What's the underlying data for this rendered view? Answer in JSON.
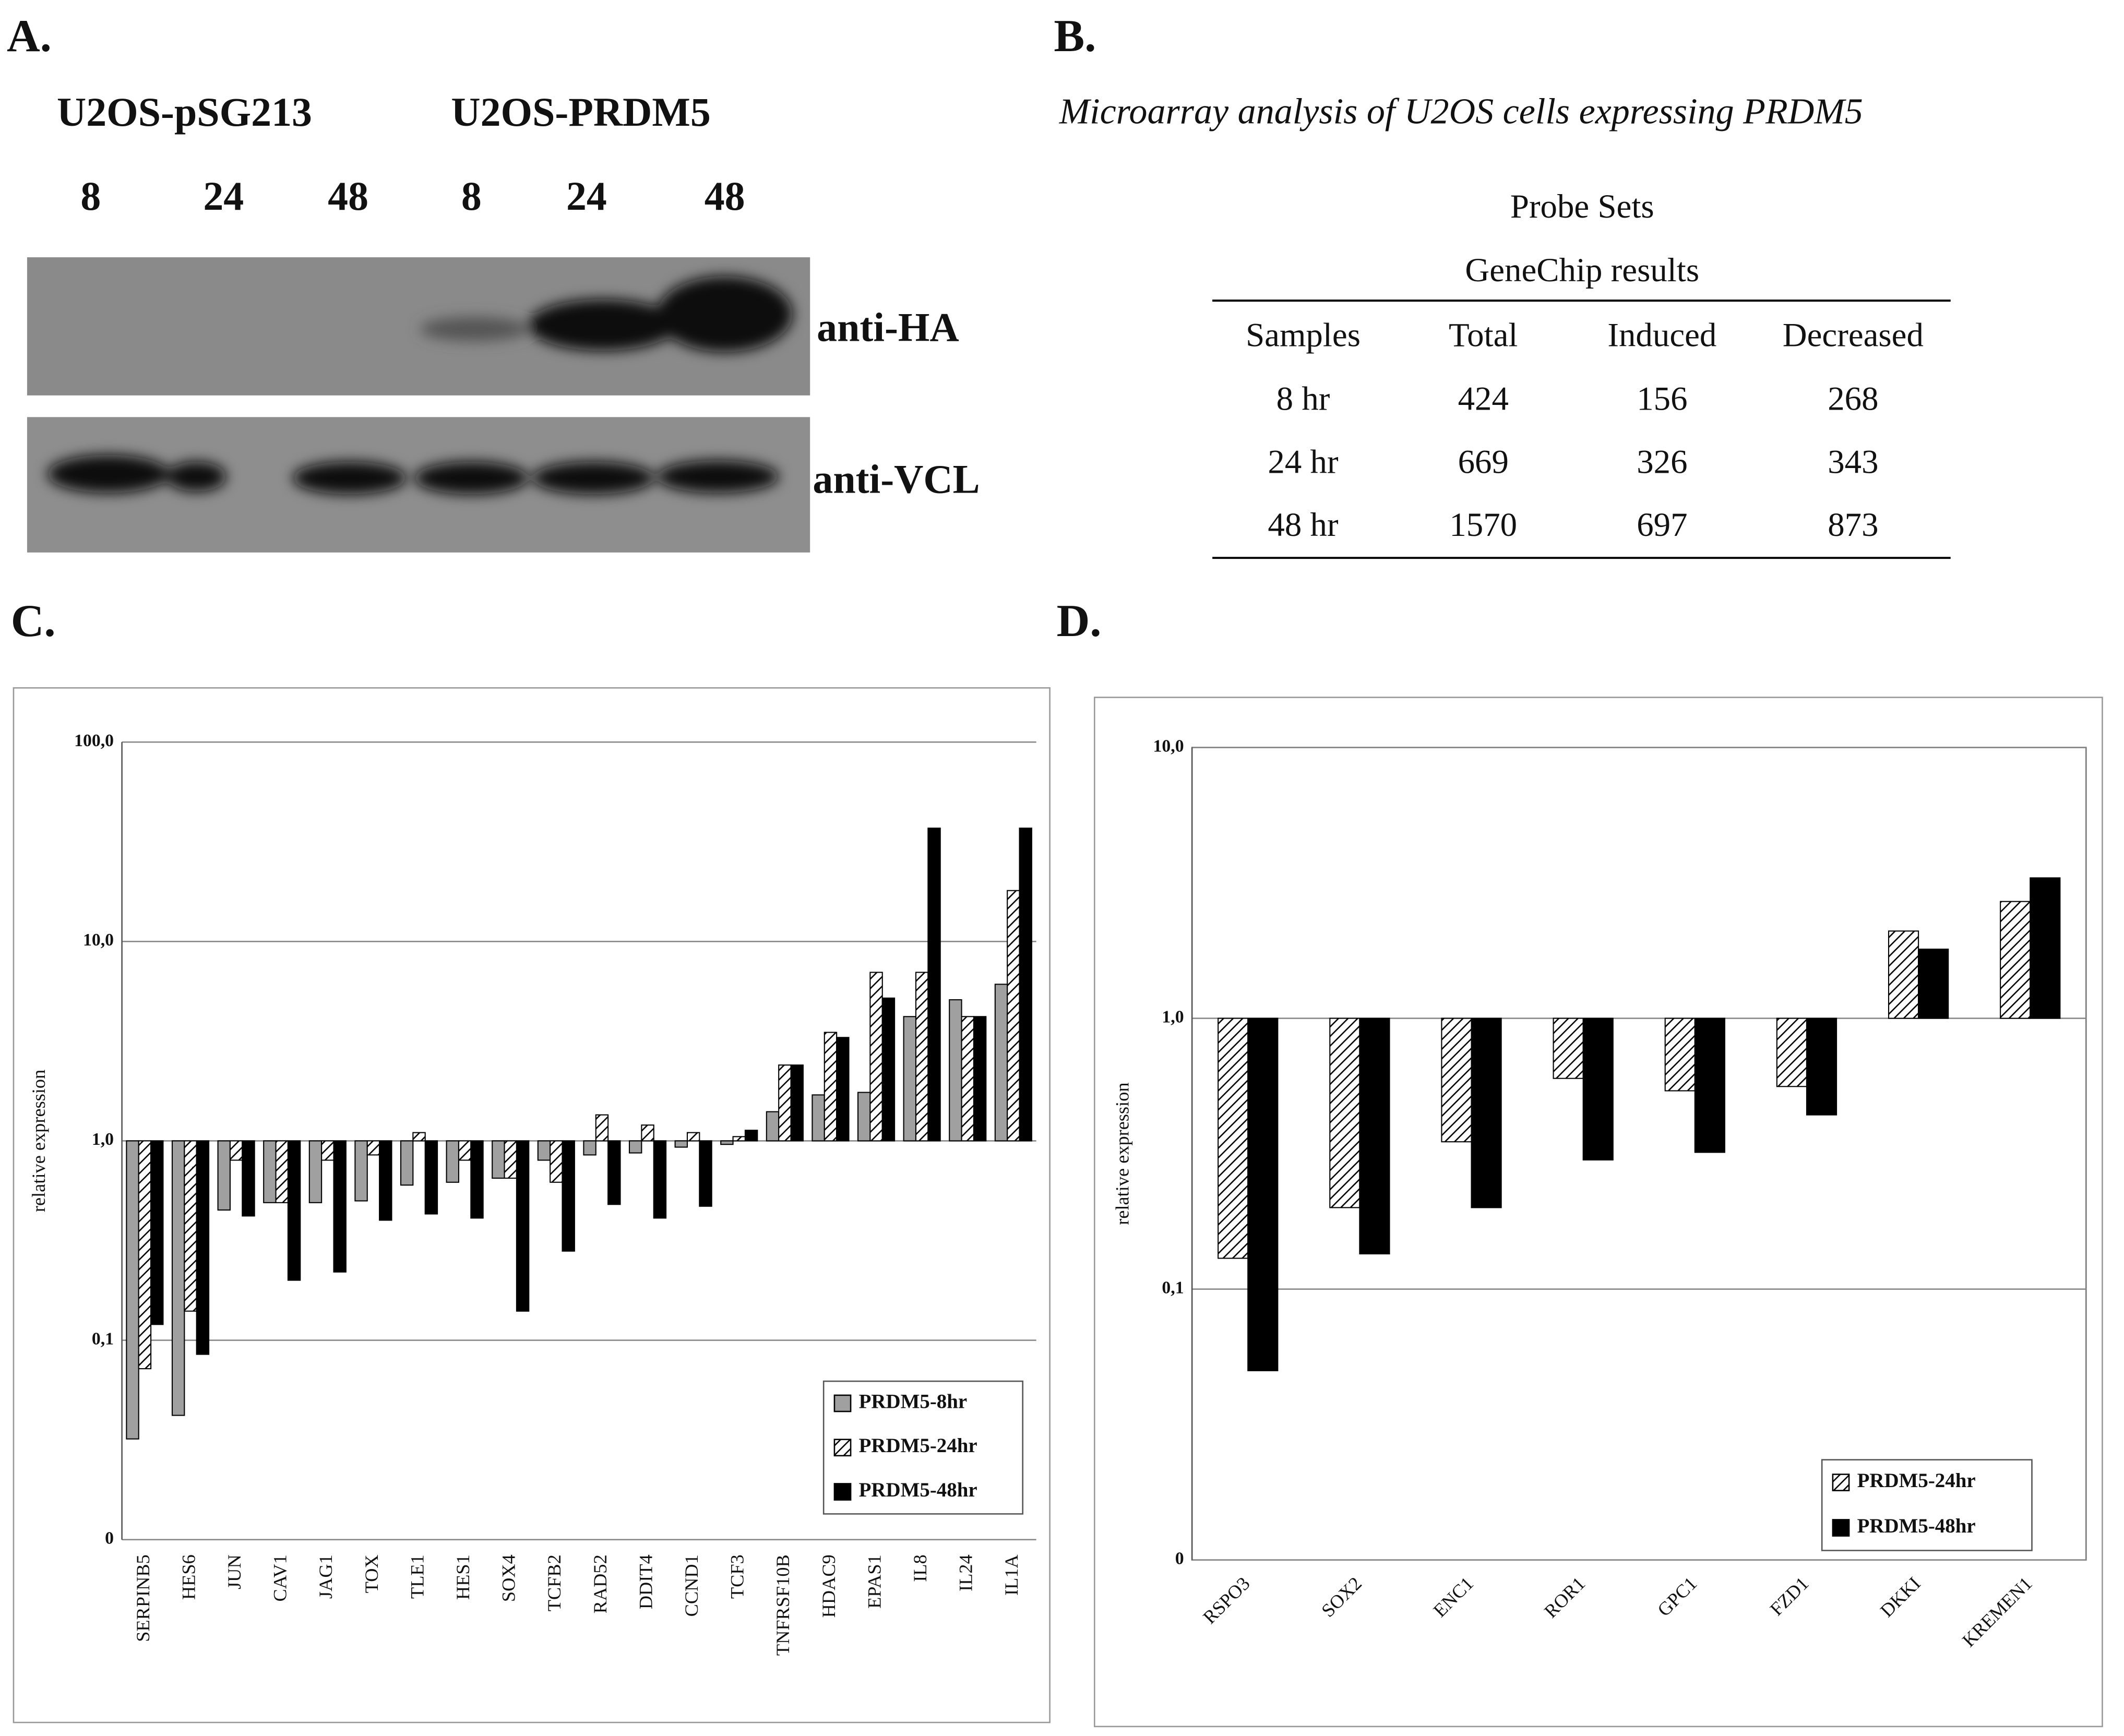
{
  "panel_a": {
    "label": "A.",
    "groups": [
      "U2OS-pSG213",
      "U2OS-PRDM5"
    ],
    "timepoints": [
      "8",
      "24",
      "48",
      "8",
      "24",
      "48"
    ],
    "bands": [
      "anti-HA",
      "anti-VCL"
    ]
  },
  "panel_b": {
    "label": "B.",
    "title": "Microarray analysis of U2OS cells expressing PRDM5",
    "header": [
      "Probe Sets",
      "GeneChip results"
    ],
    "columns": [
      "Samples",
      "Total",
      "Induced",
      "Decreased"
    ],
    "rows": [
      [
        "8 hr",
        424,
        156,
        268
      ],
      [
        "24 hr",
        669,
        326,
        343
      ],
      [
        "48 hr",
        1570,
        697,
        873
      ]
    ]
  },
  "chart_data": [
    {
      "type": "bar",
      "label": "C.",
      "y_label": "relative expression",
      "log_scale": true,
      "legend": "lower right",
      "ylim": [
        0.01,
        100
      ],
      "yticks": [
        {
          "value": 0.01,
          "label": "0"
        },
        {
          "value": 0.1,
          "label": "0,1"
        },
        {
          "value": 1,
          "label": "1,0"
        },
        {
          "value": 10,
          "label": "10,0"
        },
        {
          "value": 100,
          "label": "100,0"
        }
      ],
      "categories": [
        "SERPINB5",
        "HES6",
        "JUN",
        "CAV1",
        "JAG1",
        "TOX",
        "TLE1",
        "HES1",
        "SOX4",
        "TCFB2",
        "RAD52",
        "DDIT4",
        "CCND1",
        "TCF3",
        "TNFRSF10B",
        "HDAC9",
        "EPAS1",
        "IL8",
        "IL24",
        "IL1A"
      ],
      "series": [
        {
          "name": "PRDM5-8hr",
          "color": "#a0a0a0",
          "values": [
            0.032,
            0.042,
            0.45,
            0.49,
            0.49,
            0.5,
            0.6,
            0.62,
            0.65,
            0.8,
            0.85,
            0.87,
            0.93,
            0.96,
            1.4,
            1.7,
            1.75,
            4.2,
            5.1,
            6.1
          ]
        },
        {
          "name": "PRDM5-24hr",
          "color": "#ffffff",
          "hatch": true,
          "values": [
            0.072,
            0.14,
            0.8,
            0.49,
            0.8,
            0.85,
            1.1,
            0.8,
            0.65,
            0.62,
            1.35,
            1.2,
            1.1,
            1.05,
            2.4,
            3.5,
            7,
            7,
            4.2,
            18
          ]
        },
        {
          "name": "PRDM5-48hr",
          "color": "#000000",
          "values": [
            0.12,
            0.085,
            0.42,
            0.2,
            0.22,
            0.4,
            0.43,
            0.41,
            0.14,
            0.28,
            0.48,
            0.41,
            0.47,
            1.13,
            2.4,
            3.3,
            5.2,
            37,
            4.2,
            37
          ]
        }
      ]
    },
    {
      "type": "bar",
      "label": "D.",
      "y_label": "relative expression",
      "log_scale": true,
      "legend": "lower right",
      "ylim": [
        0.01,
        10
      ],
      "yticks": [
        {
          "value": 0.01,
          "label": "0"
        },
        {
          "value": 0.1,
          "label": "0,1"
        },
        {
          "value": 1,
          "label": "1,0"
        },
        {
          "value": 10,
          "label": "10,0"
        }
      ],
      "categories": [
        "RSPO3",
        "SOX2",
        "ENC1",
        "ROR1",
        "GPC1",
        "FZD1",
        "DKKI",
        "KREMEN1"
      ],
      "series": [
        {
          "name": "PRDM5-24hr",
          "color": "#ffffff",
          "hatch": true,
          "values": [
            0.13,
            0.2,
            0.35,
            0.6,
            0.54,
            0.56,
            2.1,
            2.7
          ]
        },
        {
          "name": "PRDM5-48hr",
          "color": "#000000",
          "values": [
            0.05,
            0.135,
            0.2,
            0.3,
            0.32,
            0.44,
            1.8,
            3.3
          ]
        }
      ]
    }
  ]
}
